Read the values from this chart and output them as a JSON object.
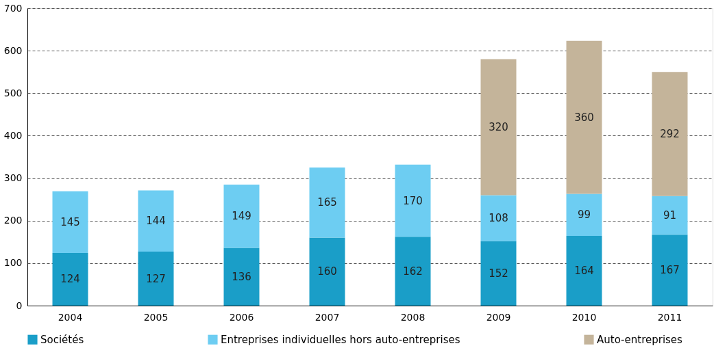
{
  "chart_data": {
    "type": "bar",
    "stacked": true,
    "categories": [
      "2004",
      "2005",
      "2006",
      "2007",
      "2008",
      "2009",
      "2010",
      "2011"
    ],
    "series": [
      {
        "name": "Sociétés",
        "color": "#1a9ec8",
        "values": [
          124,
          127,
          136,
          160,
          162,
          152,
          164,
          167
        ]
      },
      {
        "name": "Entreprises individuelles hors auto-entreprises",
        "color": "#6dcdf2",
        "values": [
          145,
          144,
          149,
          165,
          170,
          108,
          99,
          91
        ]
      },
      {
        "name": "Auto-entreprises",
        "color": "#c4b49a",
        "values": [
          null,
          null,
          null,
          null,
          null,
          320,
          360,
          292
        ]
      }
    ],
    "ylim": [
      0,
      700
    ],
    "yticks": [
      0,
      100,
      200,
      300,
      400,
      500,
      600,
      700
    ],
    "grid": "y",
    "data_labels": true,
    "legend": "bottom"
  }
}
